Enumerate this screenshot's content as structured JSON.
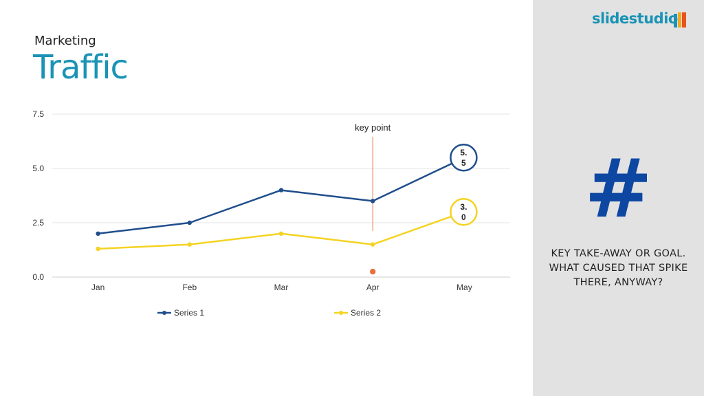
{
  "slide": {
    "subtitle": "Marketing",
    "title": "Traffic"
  },
  "sidebar": {
    "brand": "slidestudio",
    "icon": "hash-icon",
    "hash_glyph": "#",
    "takeaway": "KEY TAKE-AWAY OR GOAL. WHAT CAUSED THAT SPIKE THERE, ANYWAY?"
  },
  "colors": {
    "accent": "#1a93b5",
    "series1": "#1f4e8c",
    "series2": "#f4d322",
    "marker": "#e8703a",
    "sidebar_bg": "#e2e2e2",
    "hash": "#0d47a1"
  },
  "chart_data": {
    "type": "line",
    "categories": [
      "Jan",
      "Feb",
      "Mar",
      "Apr",
      "May"
    ],
    "series": [
      {
        "name": "Series 1",
        "values": [
          2.0,
          2.5,
          4.0,
          3.5,
          5.5
        ]
      },
      {
        "name": "Series 2",
        "values": [
          1.3,
          1.5,
          2.0,
          1.5,
          3.0
        ]
      }
    ],
    "ylim": [
      0,
      7.5
    ],
    "yticks": [
      "0.0",
      "2.5",
      "5.0",
      "7.5"
    ],
    "grid": true,
    "legend": "bottom",
    "annotations": [
      {
        "text": "key point",
        "category": "Apr"
      }
    ],
    "callouts": [
      {
        "series": 0,
        "category": "May",
        "text": [
          "5.",
          "5"
        ]
      },
      {
        "series": 1,
        "category": "May",
        "text": [
          "3.",
          "0"
        ]
      }
    ],
    "extra_point": {
      "category": "Apr",
      "value": 0.25
    }
  }
}
